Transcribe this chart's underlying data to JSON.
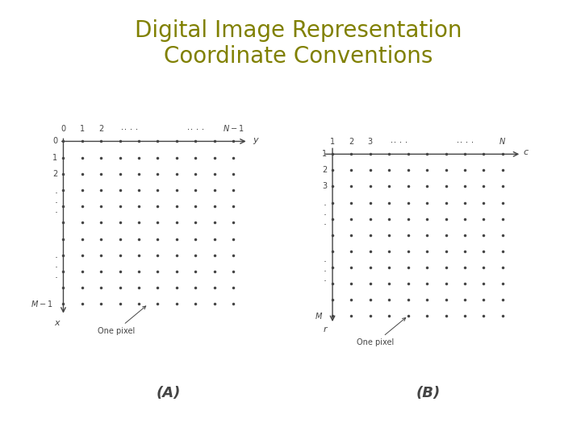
{
  "title_line1": "Digital Image Representation",
  "title_line2": "Coordinate Conventions",
  "title_color": "#808000",
  "title_fontsize": 20,
  "bg_color": "#ffffff",
  "sidebar_color": "#808000",
  "divider_color": "#808000",
  "label_A": "(A)",
  "label_B": "(B)",
  "label_fontsize": 13,
  "grid_rows": 11,
  "grid_cols": 10,
  "dot_color": "#444444",
  "dot_size": 3,
  "axis_color": "#444444",
  "text_color": "#444444",
  "annot_fontsize": 7,
  "tick_fontsize": 7
}
